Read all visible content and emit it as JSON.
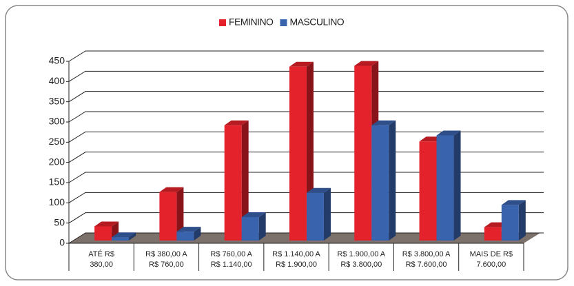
{
  "chart_data": {
    "type": "bar3d",
    "categories": [
      [
        "ATÉ R$",
        "380,00"
      ],
      [
        "R$ 380,00 A",
        "R$ 760,00"
      ],
      [
        "R$ 760,00 A",
        "R$ 1.140,00"
      ],
      [
        "R$ 1.140,00 A",
        "R$ 1.900,00"
      ],
      [
        "R$ 1.900,00 A",
        "R$ 3.800,00"
      ],
      [
        "R$ 3.800,00 A",
        "R$ 7.600,00"
      ],
      [
        "MAIS DE R$",
        "7.600,00"
      ]
    ],
    "series": [
      {
        "name": "FEMININO",
        "color": "#e3222b",
        "values": [
          35,
          120,
          285,
          430,
          432,
          245,
          33
        ]
      },
      {
        "name": "MASCULINO",
        "color": "#3a63ad",
        "values": [
          8,
          22,
          58,
          118,
          285,
          260,
          88
        ]
      }
    ],
    "ylim": [
      0,
      450
    ],
    "yticks": [
      0,
      50,
      100,
      150,
      200,
      250,
      300,
      350,
      400,
      450
    ],
    "grid": true,
    "legend": "top"
  }
}
